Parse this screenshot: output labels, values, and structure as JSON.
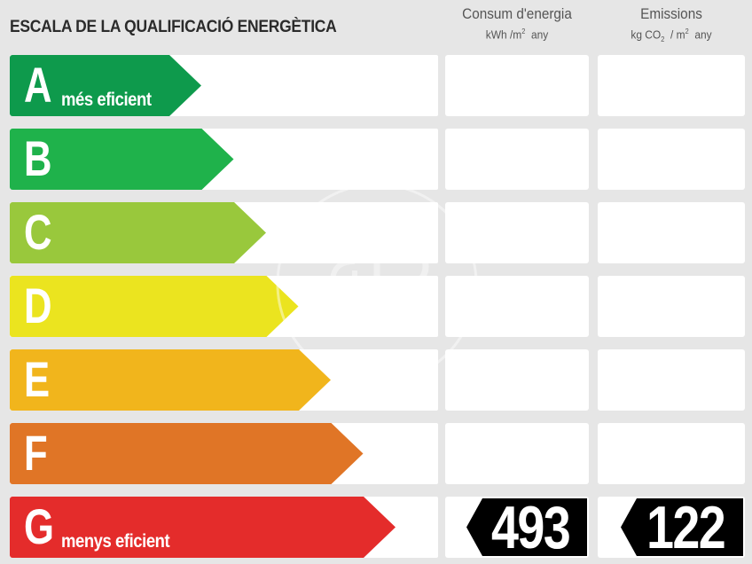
{
  "title": "ESCALA DE LA QUALIFICACIÓ ENERGÈTICA",
  "columns": {
    "consum": {
      "label": "Consum d'energia",
      "unit_pre": "kWh /m",
      "unit_sup": "2",
      "unit_post": "any"
    },
    "emissions": {
      "label": "Emissions",
      "unit_pre": "kg CO",
      "unit_sub": "2",
      "unit_mid": "/ m",
      "unit_sup": "2",
      "unit_post": "any"
    }
  },
  "ratings": [
    {
      "letter": "A",
      "sublabel": "més eficient",
      "color": "#0e9a4c"
    },
    {
      "letter": "B",
      "sublabel": "",
      "color": "#1fb24b"
    },
    {
      "letter": "C",
      "sublabel": "",
      "color": "#99c83c"
    },
    {
      "letter": "D",
      "sublabel": "",
      "color": "#ebe41f"
    },
    {
      "letter": "E",
      "sublabel": "",
      "color": "#f1b51c"
    },
    {
      "letter": "F",
      "sublabel": "",
      "color": "#e07526"
    },
    {
      "letter": "G",
      "sublabel": "menys eficient",
      "color": "#e42c2b"
    }
  ],
  "result": {
    "rating": "G",
    "consum_value": "493",
    "emissions_value": "122"
  }
}
